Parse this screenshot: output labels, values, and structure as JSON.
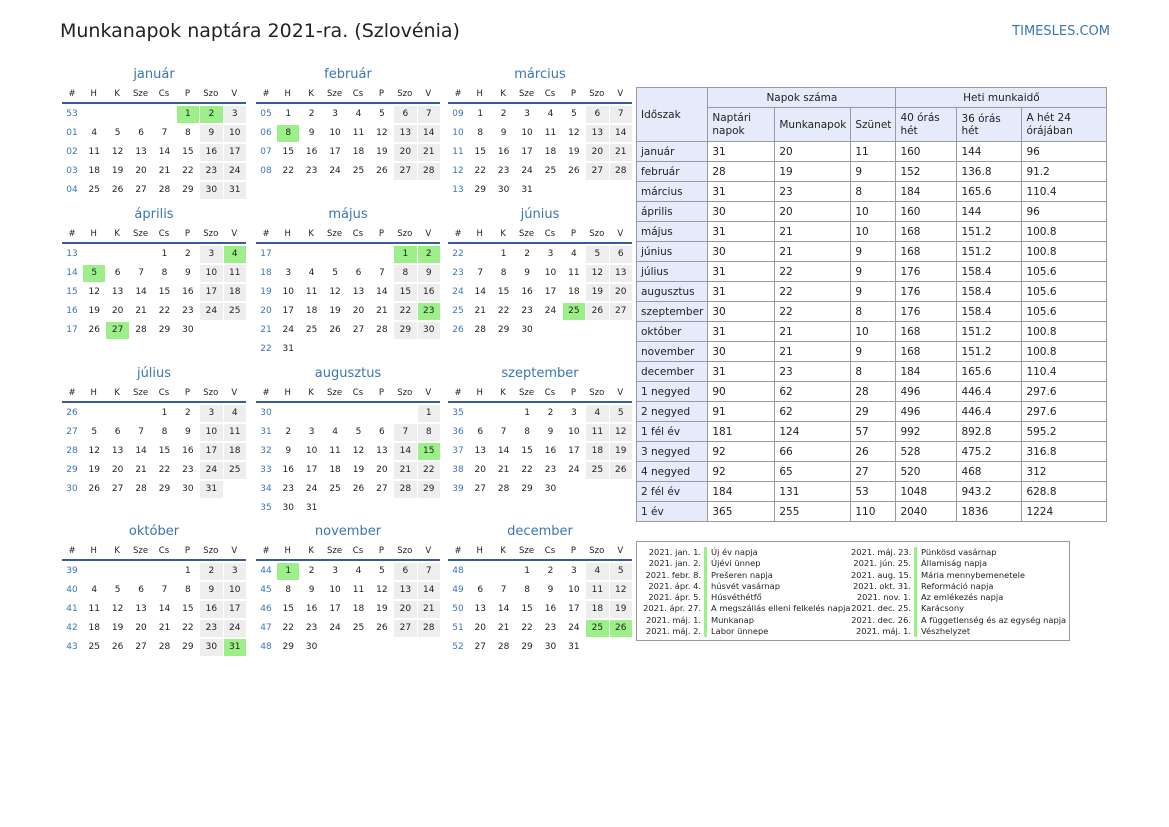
{
  "title": "Munkanapok naptára 2021-ra. (Szlovénia)",
  "site": "TIMESLES.COM",
  "weekday_header": [
    "#",
    "H",
    "K",
    "Sze",
    "Cs",
    "P",
    "Szo",
    "V"
  ],
  "months": [
    {
      "name": "január",
      "weeks": [
        [
          "53",
          "",
          "",
          "",
          "",
          1,
          2,
          3
        ],
        [
          "01",
          4,
          5,
          6,
          7,
          8,
          9,
          10
        ],
        [
          "02",
          11,
          12,
          13,
          14,
          15,
          16,
          17
        ],
        [
          "03",
          18,
          19,
          20,
          21,
          22,
          23,
          24
        ],
        [
          "04",
          25,
          26,
          27,
          28,
          29,
          30,
          31
        ]
      ],
      "holidays": [
        1,
        2
      ]
    },
    {
      "name": "február",
      "weeks": [
        [
          "05",
          1,
          2,
          3,
          4,
          5,
          6,
          7
        ],
        [
          "06",
          8,
          9,
          10,
          11,
          12,
          13,
          14
        ],
        [
          "07",
          15,
          16,
          17,
          18,
          19,
          20,
          21
        ],
        [
          "08",
          22,
          23,
          24,
          25,
          26,
          27,
          28
        ]
      ],
      "holidays": [
        8
      ]
    },
    {
      "name": "március",
      "weeks": [
        [
          "09",
          1,
          2,
          3,
          4,
          5,
          6,
          7
        ],
        [
          "10",
          8,
          9,
          10,
          11,
          12,
          13,
          14
        ],
        [
          "11",
          15,
          16,
          17,
          18,
          19,
          20,
          21
        ],
        [
          "12",
          22,
          23,
          24,
          25,
          26,
          27,
          28
        ],
        [
          "13",
          29,
          30,
          31,
          "",
          "",
          "",
          ""
        ]
      ],
      "holidays": []
    },
    {
      "name": "április",
      "weeks": [
        [
          "13",
          "",
          "",
          "",
          1,
          2,
          3,
          4
        ],
        [
          "14",
          5,
          6,
          7,
          8,
          9,
          10,
          11
        ],
        [
          "15",
          12,
          13,
          14,
          15,
          16,
          17,
          18
        ],
        [
          "16",
          19,
          20,
          21,
          22,
          23,
          24,
          25
        ],
        [
          "17",
          26,
          27,
          28,
          29,
          30,
          "",
          ""
        ]
      ],
      "holidays": [
        4,
        5,
        27
      ]
    },
    {
      "name": "május",
      "weeks": [
        [
          "17",
          "",
          "",
          "",
          "",
          "",
          1,
          2
        ],
        [
          "18",
          3,
          4,
          5,
          6,
          7,
          8,
          9
        ],
        [
          "19",
          10,
          11,
          12,
          13,
          14,
          15,
          16
        ],
        [
          "20",
          17,
          18,
          19,
          20,
          21,
          22,
          23
        ],
        [
          "21",
          24,
          25,
          26,
          27,
          28,
          29,
          30
        ],
        [
          "22",
          31,
          "",
          "",
          "",
          "",
          "",
          ""
        ]
      ],
      "holidays": [
        1,
        2,
        23
      ]
    },
    {
      "name": "június",
      "weeks": [
        [
          "22",
          "",
          1,
          2,
          3,
          4,
          5,
          6
        ],
        [
          "23",
          7,
          8,
          9,
          10,
          11,
          12,
          13
        ],
        [
          "24",
          14,
          15,
          16,
          17,
          18,
          19,
          20
        ],
        [
          "25",
          21,
          22,
          23,
          24,
          25,
          26,
          27
        ],
        [
          "26",
          28,
          29,
          30,
          "",
          "",
          "",
          ""
        ]
      ],
      "holidays": [
        25
      ]
    },
    {
      "name": "július",
      "weeks": [
        [
          "26",
          "",
          "",
          "",
          1,
          2,
          3,
          4
        ],
        [
          "27",
          5,
          6,
          7,
          8,
          9,
          10,
          11
        ],
        [
          "28",
          12,
          13,
          14,
          15,
          16,
          17,
          18
        ],
        [
          "29",
          19,
          20,
          21,
          22,
          23,
          24,
          25
        ],
        [
          "30",
          26,
          27,
          28,
          29,
          30,
          31,
          ""
        ]
      ],
      "holidays": []
    },
    {
      "name": "augusztus",
      "weeks": [
        [
          "30",
          "",
          "",
          "",
          "",
          "",
          "",
          1
        ],
        [
          "31",
          2,
          3,
          4,
          5,
          6,
          7,
          8
        ],
        [
          "32",
          9,
          10,
          11,
          12,
          13,
          14,
          15
        ],
        [
          "33",
          16,
          17,
          18,
          19,
          20,
          21,
          22
        ],
        [
          "34",
          23,
          24,
          25,
          26,
          27,
          28,
          29
        ],
        [
          "35",
          30,
          31,
          "",
          "",
          "",
          "",
          ""
        ]
      ],
      "holidays": [
        15
      ]
    },
    {
      "name": "szeptember",
      "weeks": [
        [
          "35",
          "",
          "",
          1,
          2,
          3,
          4,
          5
        ],
        [
          "36",
          6,
          7,
          8,
          9,
          10,
          11,
          12
        ],
        [
          "37",
          13,
          14,
          15,
          16,
          17,
          18,
          19
        ],
        [
          "38",
          20,
          21,
          22,
          23,
          24,
          25,
          26
        ],
        [
          "39",
          27,
          28,
          29,
          30,
          "",
          "",
          ""
        ]
      ],
      "holidays": []
    },
    {
      "name": "október",
      "weeks": [
        [
          "39",
          "",
          "",
          "",
          "",
          1,
          2,
          3
        ],
        [
          "40",
          4,
          5,
          6,
          7,
          8,
          9,
          10
        ],
        [
          "41",
          11,
          12,
          13,
          14,
          15,
          16,
          17
        ],
        [
          "42",
          18,
          19,
          20,
          21,
          22,
          23,
          24
        ],
        [
          "43",
          25,
          26,
          27,
          28,
          29,
          30,
          31
        ]
      ],
      "holidays": [
        31
      ]
    },
    {
      "name": "november",
      "weeks": [
        [
          "44",
          1,
          2,
          3,
          4,
          5,
          6,
          7
        ],
        [
          "45",
          8,
          9,
          10,
          11,
          12,
          13,
          14
        ],
        [
          "46",
          15,
          16,
          17,
          18,
          19,
          20,
          21
        ],
        [
          "47",
          22,
          23,
          24,
          25,
          26,
          27,
          28
        ],
        [
          "48",
          29,
          30,
          "",
          "",
          "",
          "",
          ""
        ]
      ],
      "holidays": [
        1
      ]
    },
    {
      "name": "december",
      "weeks": [
        [
          "48",
          "",
          "",
          1,
          2,
          3,
          4,
          5
        ],
        [
          "49",
          6,
          7,
          8,
          9,
          10,
          11,
          12
        ],
        [
          "50",
          13,
          14,
          15,
          16,
          17,
          18,
          19
        ],
        [
          "51",
          20,
          21,
          22,
          23,
          24,
          25,
          26
        ],
        [
          "52",
          27,
          28,
          29,
          30,
          31,
          "",
          ""
        ]
      ],
      "holidays": [
        25,
        26
      ]
    }
  ],
  "stats": {
    "h_period": "Időszak",
    "h_days": "Napok száma",
    "h_hours": "Heti munkaidő",
    "cols": [
      "Naptári napok",
      "Munkanapok",
      "Szünet",
      "40 órás hét",
      "36 órás hét",
      "A hét 24 órájában"
    ],
    "rows": [
      [
        "január",
        "31",
        "20",
        "11",
        "160",
        "144",
        "96"
      ],
      [
        "február",
        "28",
        "19",
        "9",
        "152",
        "136.8",
        "91.2"
      ],
      [
        "március",
        "31",
        "23",
        "8",
        "184",
        "165.6",
        "110.4"
      ],
      [
        "április",
        "30",
        "20",
        "10",
        "160",
        "144",
        "96"
      ],
      [
        "május",
        "31",
        "21",
        "10",
        "168",
        "151.2",
        "100.8"
      ],
      [
        "június",
        "30",
        "21",
        "9",
        "168",
        "151.2",
        "100.8"
      ],
      [
        "július",
        "31",
        "22",
        "9",
        "176",
        "158.4",
        "105.6"
      ],
      [
        "augusztus",
        "31",
        "22",
        "9",
        "176",
        "158.4",
        "105.6"
      ],
      [
        "szeptember",
        "30",
        "22",
        "8",
        "176",
        "158.4",
        "105.6"
      ],
      [
        "október",
        "31",
        "21",
        "10",
        "168",
        "151.2",
        "100.8"
      ],
      [
        "november",
        "30",
        "21",
        "9",
        "168",
        "151.2",
        "100.8"
      ],
      [
        "december",
        "31",
        "23",
        "8",
        "184",
        "165.6",
        "110.4"
      ],
      [
        "1 negyed",
        "90",
        "62",
        "28",
        "496",
        "446.4",
        "297.6"
      ],
      [
        "2 negyed",
        "91",
        "62",
        "29",
        "496",
        "446.4",
        "297.6"
      ],
      [
        "1 fél év",
        "181",
        "124",
        "57",
        "992",
        "892.8",
        "595.2"
      ],
      [
        "3 negyed",
        "92",
        "66",
        "26",
        "528",
        "475.2",
        "316.8"
      ],
      [
        "4 negyed",
        "92",
        "65",
        "27",
        "520",
        "468",
        "312"
      ],
      [
        "2 fél év",
        "184",
        "131",
        "53",
        "1048",
        "943.2",
        "628.8"
      ],
      [
        "1 év",
        "365",
        "255",
        "110",
        "2040",
        "1836",
        "1224"
      ]
    ]
  },
  "holidays_list": [
    [
      {
        "date": "2021. jan. 1.",
        "name": "Új év napja"
      },
      {
        "date": "2021. jan. 2.",
        "name": "Újévi ünnep"
      },
      {
        "date": "2021. febr. 8.",
        "name": "Prešeren napja"
      },
      {
        "date": "2021. ápr. 4.",
        "name": "húsvét vasárnap"
      },
      {
        "date": "2021. ápr. 5.",
        "name": "Húsvéthétfő"
      },
      {
        "date": "2021. ápr. 27.",
        "name": "A megszállás elleni felkelés napja"
      },
      {
        "date": "2021. máj. 1.",
        "name": "Munkanap"
      },
      {
        "date": "2021. máj. 2.",
        "name": "Labor ünnepe"
      }
    ],
    [
      {
        "date": "2021. máj. 23.",
        "name": "Pünkösd vasárnap"
      },
      {
        "date": "2021. jún. 25.",
        "name": "Államiság napja"
      },
      {
        "date": "2021. aug. 15.",
        "name": "Mária mennybemenetele"
      },
      {
        "date": "2021. okt. 31.",
        "name": "Reformáció napja"
      },
      {
        "date": "2021. nov. 1.",
        "name": "Az emlékezés napja"
      },
      {
        "date": "2021. dec. 25.",
        "name": "Karácsony"
      },
      {
        "date": "2021. dec. 26.",
        "name": "A függetlenség és az egység napja"
      },
      {
        "date": "2021. máj. 1.",
        "name": "Vészhelyzet"
      }
    ]
  ]
}
